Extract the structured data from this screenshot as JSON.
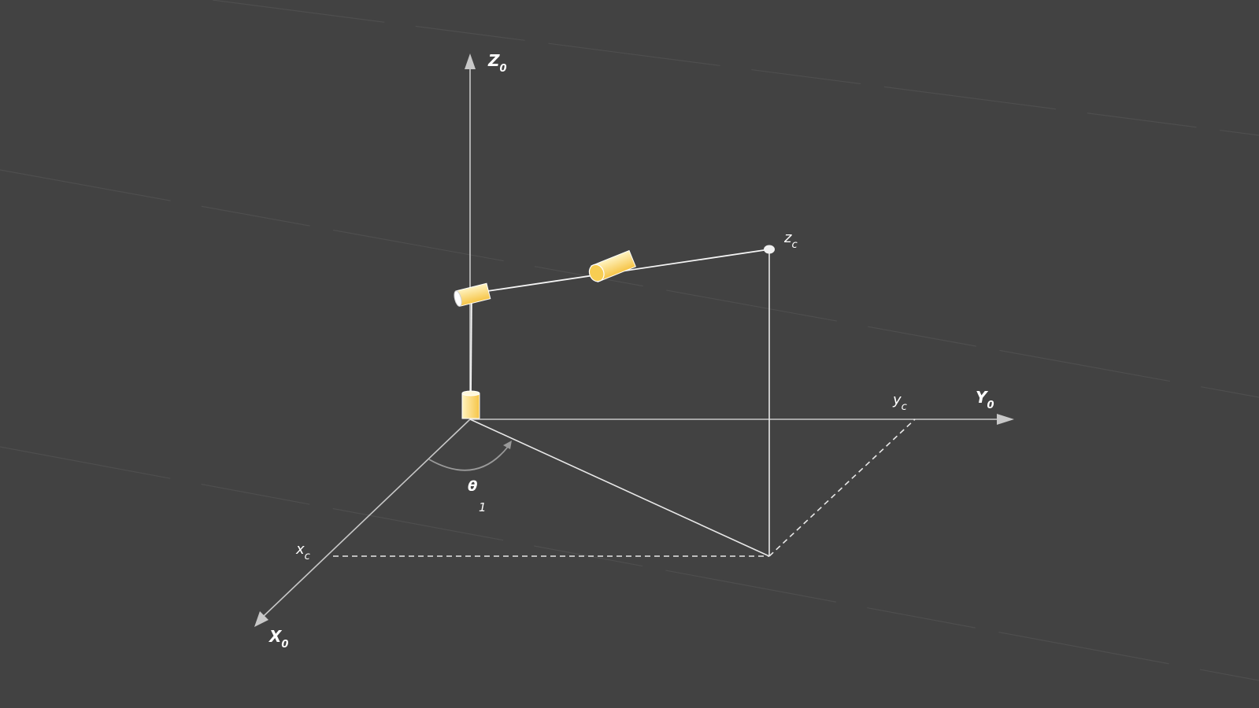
{
  "colors": {
    "background": "#424242",
    "axis": "#c8c8c8",
    "link": "#f4f4f4",
    "joint_fill_light": "#fff1b8",
    "joint_fill_dark": "#f7c84a",
    "streak": "#4d4d4d"
  },
  "icons": [
    "arrowhead",
    "cylinder-joint",
    "end-effector-dot",
    "rotation-arc-arrow"
  ],
  "labels": {
    "z0_main": "Z",
    "z0_sub": "0",
    "y0_main": "Y",
    "y0_sub": "0",
    "x0_main": "X",
    "x0_sub": "0",
    "zc_main": "z",
    "zc_sub": "c",
    "yc_main": "y",
    "yc_sub": "c",
    "xc_main": "x",
    "xc_sub": "c",
    "theta_main": "θ",
    "theta_sub": "1"
  }
}
